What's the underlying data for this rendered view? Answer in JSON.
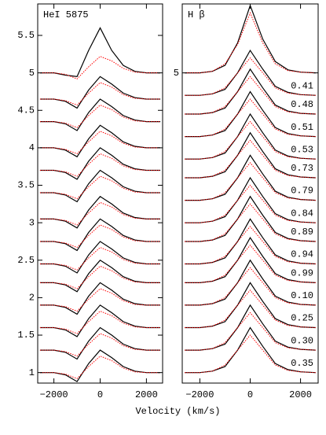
{
  "chart_data": [
    {
      "type": "line",
      "title": "HeI 5875",
      "xlabel": "Velocity (km/s)",
      "x": [
        -2600,
        -2000,
        -1500,
        -1000,
        -500,
        0,
        500,
        1000,
        1500,
        2000,
        2600
      ],
      "xlim": [
        -2700,
        2700
      ],
      "xticks": [
        {
          "value": -2000,
          "label": "−2000"
        },
        0,
        2000
      ],
      "ylim": [
        0.86,
        5.92
      ],
      "yticks": [
        1,
        1.5,
        2,
        2.5,
        3,
        3.5,
        4,
        4.5,
        5,
        5.5
      ],
      "series": [
        {
          "color": "#000000",
          "values": [
            5,
            5,
            4.97,
            4.95,
            5.3,
            5.6,
            5.3,
            5.1,
            5.02,
            5,
            5
          ]
        },
        {
          "color": "#ff0000",
          "style": "dotted",
          "values": [
            5,
            5,
            4.98,
            4.92,
            5.08,
            5.22,
            5.16,
            5.06,
            5.01,
            5,
            5
          ]
        },
        {
          "color": "#000000",
          "values": [
            4.65,
            4.65,
            4.62,
            4.53,
            4.77,
            4.95,
            4.85,
            4.73,
            4.67,
            4.65,
            4.65
          ]
        },
        {
          "color": "#ff0000",
          "style": "dotted",
          "values": [
            4.65,
            4.65,
            4.63,
            4.57,
            4.73,
            4.87,
            4.81,
            4.71,
            4.66,
            4.65,
            4.65
          ]
        },
        {
          "color": "#000000",
          "values": [
            4.35,
            4.35,
            4.32,
            4.23,
            4.47,
            4.65,
            4.55,
            4.43,
            4.37,
            4.35,
            4.35
          ]
        },
        {
          "color": "#ff0000",
          "style": "dotted",
          "values": [
            4.35,
            4.35,
            4.33,
            4.27,
            4.43,
            4.57,
            4.51,
            4.41,
            4.36,
            4.35,
            4.35
          ]
        },
        {
          "color": "#000000",
          "values": [
            4,
            4,
            3.97,
            3.88,
            4.12,
            4.3,
            4.2,
            4.08,
            4.02,
            4,
            4
          ]
        },
        {
          "color": "#ff0000",
          "style": "dotted",
          "values": [
            4,
            4,
            3.98,
            3.92,
            4.08,
            4.22,
            4.16,
            4.06,
            4.01,
            4,
            4
          ]
        },
        {
          "color": "#000000",
          "values": [
            3.7,
            3.7,
            3.67,
            3.58,
            3.82,
            4,
            3.9,
            3.78,
            3.72,
            3.7,
            3.7
          ]
        },
        {
          "color": "#ff0000",
          "style": "dotted",
          "values": [
            3.7,
            3.7,
            3.68,
            3.62,
            3.78,
            3.92,
            3.86,
            3.76,
            3.71,
            3.7,
            3.7
          ]
        },
        {
          "color": "#000000",
          "values": [
            3.4,
            3.4,
            3.37,
            3.28,
            3.52,
            3.7,
            3.6,
            3.48,
            3.42,
            3.4,
            3.4
          ]
        },
        {
          "color": "#ff0000",
          "style": "dotted",
          "values": [
            3.4,
            3.4,
            3.38,
            3.32,
            3.48,
            3.62,
            3.56,
            3.46,
            3.41,
            3.4,
            3.4
          ]
        },
        {
          "color": "#000000",
          "values": [
            3.05,
            3.05,
            3.02,
            2.93,
            3.17,
            3.35,
            3.25,
            3.13,
            3.07,
            3.05,
            3.05
          ]
        },
        {
          "color": "#ff0000",
          "style": "dotted",
          "values": [
            3.05,
            3.05,
            3.03,
            2.97,
            3.13,
            3.27,
            3.21,
            3.11,
            3.06,
            3.05,
            3.05
          ]
        },
        {
          "color": "#000000",
          "values": [
            2.75,
            2.75,
            2.72,
            2.63,
            2.87,
            3.05,
            2.95,
            2.83,
            2.77,
            2.75,
            2.75
          ]
        },
        {
          "color": "#ff0000",
          "style": "dotted",
          "values": [
            2.75,
            2.75,
            2.73,
            2.67,
            2.83,
            2.97,
            2.91,
            2.81,
            2.76,
            2.75,
            2.75
          ]
        },
        {
          "color": "#000000",
          "values": [
            2.45,
            2.45,
            2.42,
            2.33,
            2.57,
            2.75,
            2.65,
            2.53,
            2.47,
            2.45,
            2.45
          ]
        },
        {
          "color": "#ff0000",
          "style": "dotted",
          "values": [
            2.45,
            2.45,
            2.43,
            2.37,
            2.53,
            2.67,
            2.61,
            2.51,
            2.46,
            2.45,
            2.45
          ]
        },
        {
          "color": "#000000",
          "values": [
            2.2,
            2.2,
            2.17,
            2.08,
            2.32,
            2.5,
            2.4,
            2.28,
            2.22,
            2.2,
            2.2
          ]
        },
        {
          "color": "#ff0000",
          "style": "dotted",
          "values": [
            2.2,
            2.2,
            2.18,
            2.12,
            2.28,
            2.42,
            2.36,
            2.26,
            2.21,
            2.2,
            2.2
          ]
        },
        {
          "color": "#000000",
          "values": [
            1.9,
            1.9,
            1.87,
            1.78,
            2.02,
            2.2,
            2.1,
            1.98,
            1.92,
            1.9,
            1.9
          ]
        },
        {
          "color": "#ff0000",
          "style": "dotted",
          "values": [
            1.9,
            1.9,
            1.88,
            1.82,
            1.98,
            2.12,
            2.06,
            1.96,
            1.91,
            1.9,
            1.9
          ]
        },
        {
          "color": "#000000",
          "values": [
            1.6,
            1.6,
            1.57,
            1.48,
            1.72,
            1.9,
            1.8,
            1.68,
            1.62,
            1.6,
            1.6
          ]
        },
        {
          "color": "#ff0000",
          "style": "dotted",
          "values": [
            1.6,
            1.6,
            1.58,
            1.52,
            1.68,
            1.82,
            1.76,
            1.66,
            1.61,
            1.6,
            1.6
          ]
        },
        {
          "color": "#000000",
          "values": [
            1.3,
            1.3,
            1.27,
            1.18,
            1.42,
            1.6,
            1.5,
            1.38,
            1.32,
            1.3,
            1.3
          ]
        },
        {
          "color": "#ff0000",
          "style": "dotted",
          "values": [
            1.3,
            1.3,
            1.28,
            1.22,
            1.38,
            1.52,
            1.46,
            1.36,
            1.31,
            1.3,
            1.3
          ]
        },
        {
          "color": "#000000",
          "values": [
            1,
            1,
            0.97,
            0.88,
            1.12,
            1.3,
            1.2,
            1.08,
            1.02,
            1,
            1
          ]
        },
        {
          "color": "#ff0000",
          "style": "dotted",
          "values": [
            1,
            1,
            0.98,
            0.92,
            1.08,
            1.22,
            1.16,
            1.06,
            1.01,
            1,
            1
          ]
        }
      ]
    },
    {
      "type": "line",
      "title": "H β",
      "x": [
        -2600,
        -2000,
        -1500,
        -1000,
        -500,
        0,
        500,
        1000,
        1500,
        2000,
        2600
      ],
      "xlim": [
        -2700,
        2700
      ],
      "xticks": [
        {
          "value": -2000,
          "label": "−2000"
        },
        0,
        2000
      ],
      "ylim": [
        0.86,
        5.92
      ],
      "yticks": [
        5
      ],
      "series": [
        {
          "color": "#000000",
          "values": [
            5,
            5,
            5.02,
            5.1,
            5.4,
            5.9,
            5.45,
            5.15,
            5.04,
            5.01,
            5
          ]
        },
        {
          "color": "#ff0000",
          "style": "dotted",
          "values": [
            5,
            5,
            5.02,
            5.12,
            5.38,
            5.8,
            5.4,
            5.12,
            5.03,
            5.01,
            5
          ]
        },
        {
          "name": "0.41",
          "color": "#000000",
          "values": [
            4.7,
            4.7,
            4.72,
            4.78,
            5,
            5.3,
            5.05,
            4.82,
            4.74,
            4.71,
            4.7
          ]
        },
        {
          "color": "#ff0000",
          "style": "dotted",
          "values": [
            4.7,
            4.7,
            4.72,
            4.8,
            5,
            5.2,
            5,
            4.8,
            4.73,
            4.71,
            4.7
          ]
        },
        {
          "name": "0.48",
          "color": "#000000",
          "values": [
            4.45,
            4.45,
            4.47,
            4.53,
            4.75,
            5.05,
            4.8,
            4.57,
            4.49,
            4.46,
            4.45
          ]
        },
        {
          "color": "#ff0000",
          "style": "dotted",
          "values": [
            4.45,
            4.45,
            4.47,
            4.55,
            4.75,
            4.95,
            4.75,
            4.55,
            4.48,
            4.46,
            4.45
          ]
        },
        {
          "name": "0.51",
          "color": "#000000",
          "values": [
            4.15,
            4.15,
            4.17,
            4.23,
            4.45,
            4.75,
            4.5,
            4.27,
            4.19,
            4.16,
            4.15
          ]
        },
        {
          "color": "#ff0000",
          "style": "dotted",
          "values": [
            4.15,
            4.15,
            4.17,
            4.25,
            4.45,
            4.65,
            4.45,
            4.25,
            4.18,
            4.16,
            4.15
          ]
        },
        {
          "name": "0.53",
          "color": "#000000",
          "values": [
            3.85,
            3.85,
            3.87,
            3.93,
            4.15,
            4.45,
            4.2,
            3.97,
            3.89,
            3.86,
            3.85
          ]
        },
        {
          "color": "#ff0000",
          "style": "dotted",
          "values": [
            3.85,
            3.85,
            3.87,
            3.95,
            4.15,
            4.35,
            4.15,
            3.95,
            3.88,
            3.86,
            3.85
          ]
        },
        {
          "name": "0.73",
          "color": "#000000",
          "values": [
            3.6,
            3.6,
            3.62,
            3.68,
            3.9,
            4.2,
            3.95,
            3.72,
            3.64,
            3.61,
            3.6
          ]
        },
        {
          "color": "#ff0000",
          "style": "dotted",
          "values": [
            3.6,
            3.6,
            3.62,
            3.7,
            3.9,
            4.1,
            3.9,
            3.7,
            3.63,
            3.61,
            3.6
          ]
        },
        {
          "name": "0.79",
          "color": "#000000",
          "values": [
            3.3,
            3.3,
            3.32,
            3.38,
            3.6,
            3.9,
            3.65,
            3.42,
            3.34,
            3.31,
            3.3
          ]
        },
        {
          "color": "#ff0000",
          "style": "dotted",
          "values": [
            3.3,
            3.3,
            3.32,
            3.4,
            3.6,
            3.8,
            3.6,
            3.4,
            3.33,
            3.31,
            3.3
          ]
        },
        {
          "name": "0.84",
          "color": "#000000",
          "values": [
            3,
            3,
            3.02,
            3.08,
            3.3,
            3.6,
            3.35,
            3.12,
            3.04,
            3.01,
            3
          ]
        },
        {
          "color": "#ff0000",
          "style": "dotted",
          "values": [
            3,
            3,
            3.02,
            3.1,
            3.3,
            3.5,
            3.3,
            3.1,
            3.03,
            3.01,
            3
          ]
        },
        {
          "name": "0.89",
          "color": "#000000",
          "values": [
            2.75,
            2.75,
            2.77,
            2.83,
            3.05,
            3.35,
            3.1,
            2.87,
            2.79,
            2.76,
            2.75
          ]
        },
        {
          "color": "#ff0000",
          "style": "dotted",
          "values": [
            2.75,
            2.75,
            2.77,
            2.85,
            3.05,
            3.25,
            3.05,
            2.85,
            2.78,
            2.76,
            2.75
          ]
        },
        {
          "name": "0.94",
          "color": "#000000",
          "values": [
            2.45,
            2.45,
            2.47,
            2.53,
            2.75,
            3.05,
            2.8,
            2.57,
            2.49,
            2.46,
            2.45
          ]
        },
        {
          "color": "#ff0000",
          "style": "dotted",
          "values": [
            2.45,
            2.45,
            2.47,
            2.55,
            2.75,
            2.95,
            2.75,
            2.55,
            2.48,
            2.46,
            2.45
          ]
        },
        {
          "name": "0.99",
          "color": "#000000",
          "values": [
            2.2,
            2.2,
            2.22,
            2.28,
            2.5,
            2.8,
            2.55,
            2.32,
            2.24,
            2.21,
            2.2
          ]
        },
        {
          "color": "#ff0000",
          "style": "dotted",
          "values": [
            2.2,
            2.2,
            2.22,
            2.3,
            2.5,
            2.7,
            2.5,
            2.3,
            2.23,
            2.21,
            2.2
          ]
        },
        {
          "name": "0.10",
          "color": "#000000",
          "values": [
            1.9,
            1.9,
            1.92,
            1.98,
            2.2,
            2.5,
            2.25,
            2.02,
            1.94,
            1.91,
            1.9
          ]
        },
        {
          "color": "#ff0000",
          "style": "dotted",
          "values": [
            1.9,
            1.9,
            1.92,
            2,
            2.2,
            2.4,
            2.2,
            2,
            1.93,
            1.91,
            1.9
          ]
        },
        {
          "name": "0.25",
          "color": "#000000",
          "values": [
            1.6,
            1.6,
            1.62,
            1.68,
            1.9,
            2.2,
            1.95,
            1.72,
            1.64,
            1.61,
            1.6
          ]
        },
        {
          "color": "#ff0000",
          "style": "dotted",
          "values": [
            1.6,
            1.6,
            1.62,
            1.7,
            1.9,
            2.1,
            1.9,
            1.7,
            1.63,
            1.61,
            1.6
          ]
        },
        {
          "name": "0.30",
          "color": "#000000",
          "values": [
            1.3,
            1.3,
            1.32,
            1.38,
            1.6,
            1.9,
            1.65,
            1.42,
            1.34,
            1.31,
            1.3
          ]
        },
        {
          "color": "#ff0000",
          "style": "dotted",
          "values": [
            1.3,
            1.3,
            1.32,
            1.4,
            1.6,
            1.8,
            1.6,
            1.4,
            1.33,
            1.31,
            1.3
          ]
        },
        {
          "name": "0.35",
          "color": "#000000",
          "values": [
            1,
            1,
            1.02,
            1.08,
            1.3,
            1.6,
            1.35,
            1.12,
            1.04,
            1.01,
            1
          ]
        },
        {
          "color": "#ff0000",
          "style": "dotted",
          "values": [
            1,
            1,
            1.02,
            1.1,
            1.3,
            1.5,
            1.3,
            1.1,
            1.03,
            1.01,
            1
          ]
        }
      ]
    }
  ]
}
